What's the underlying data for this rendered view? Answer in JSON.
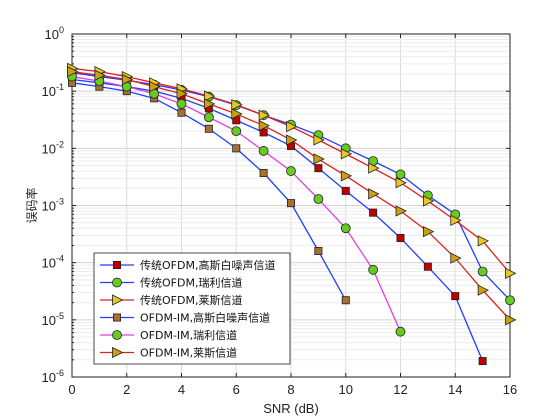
{
  "chart_data": {
    "type": "line",
    "xlabel": "SNR (dB)",
    "ylabel": "误码率",
    "x_ticks": [
      "0",
      "2",
      "4",
      "6",
      "8",
      "10",
      "12",
      "14",
      "16"
    ],
    "y_ticks": [
      "10",
      "10",
      "10",
      "10",
      "10",
      "10",
      "10"
    ],
    "y_exponents": [
      "-6",
      "-5",
      "-4",
      "-3",
      "-2",
      "-1",
      "0"
    ],
    "xlim": [
      0,
      16
    ],
    "ylim": [
      1e-06,
      1
    ],
    "yscale": "log",
    "grid": true,
    "legend_position": "bottom-left",
    "series": [
      {
        "name": "传统OFDM,高斯白噪声信道",
        "color": "#1f3fff",
        "marker": "square",
        "marker_color": "#c00000",
        "x": [
          0,
          1,
          2,
          3,
          4,
          5,
          6,
          7,
          8,
          9,
          10,
          11,
          12,
          13,
          14,
          15
        ],
        "y": [
          0.16,
          0.14,
          0.12,
          0.1,
          0.075,
          0.05,
          0.031,
          0.019,
          0.011,
          0.0045,
          0.0018,
          0.00075,
          0.00027,
          8.5e-05,
          2.6e-05,
          1.9e-06
        ]
      },
      {
        "name": "传统OFDM,瑞利信道",
        "color": "#1f3fff",
        "marker": "circle",
        "marker_color": "#66cc22",
        "x": [
          0,
          1,
          2,
          3,
          4,
          5,
          6,
          7,
          8,
          9,
          10,
          11,
          12,
          13,
          14,
          15,
          16
        ],
        "y": [
          0.21,
          0.18,
          0.155,
          0.13,
          0.105,
          0.08,
          0.057,
          0.038,
          0.026,
          0.017,
          0.01,
          0.006,
          0.0035,
          0.0015,
          0.0007,
          7e-05,
          2.2e-05
        ]
      },
      {
        "name": "传统OFDM,莱斯信道",
        "color": "#e02020",
        "marker": "triangle-right",
        "marker_color": "#e8c820",
        "x": [
          0,
          1,
          2,
          3,
          4,
          5,
          6,
          7,
          8,
          9,
          10,
          11,
          12,
          13,
          14,
          15,
          16
        ],
        "y": [
          0.25,
          0.22,
          0.18,
          0.14,
          0.11,
          0.082,
          0.058,
          0.038,
          0.024,
          0.014,
          0.008,
          0.0045,
          0.0025,
          0.0012,
          0.00055,
          0.00024,
          6.5e-05
        ]
      },
      {
        "name": "OFDM-IM,高斯白噪声信道",
        "color": "#1f3fff",
        "marker": "square",
        "marker_color": "#a87030",
        "x": [
          0,
          1,
          2,
          3,
          4,
          5,
          6,
          7,
          8,
          9,
          10
        ],
        "y": [
          0.14,
          0.12,
          0.1,
          0.075,
          0.042,
          0.022,
          0.01,
          0.0037,
          0.0011,
          0.00016,
          2.2e-05
        ]
      },
      {
        "name": "OFDM-IM,瑞利信道",
        "color": "#e040e0",
        "marker": "circle",
        "marker_color": "#66cc22",
        "x": [
          0,
          1,
          2,
          3,
          4,
          5,
          6,
          7,
          8,
          9,
          10,
          11,
          12
        ],
        "y": [
          0.18,
          0.15,
          0.12,
          0.09,
          0.06,
          0.035,
          0.02,
          0.009,
          0.004,
          0.0013,
          0.0004,
          7.5e-05,
          6.2e-06
        ]
      },
      {
        "name": "OFDM-IM,莱斯信道",
        "color": "#e02020",
        "marker": "triangle-right",
        "marker_color": "#c8a010",
        "x": [
          0,
          1,
          2,
          3,
          4,
          5,
          6,
          7,
          8,
          9,
          10,
          11,
          12,
          13,
          14,
          15,
          16
        ],
        "y": [
          0.22,
          0.19,
          0.16,
          0.12,
          0.09,
          0.06,
          0.04,
          0.025,
          0.014,
          0.0065,
          0.0033,
          0.0016,
          0.0008,
          0.00035,
          0.00012,
          3.3e-05,
          1e-05
        ]
      }
    ]
  }
}
